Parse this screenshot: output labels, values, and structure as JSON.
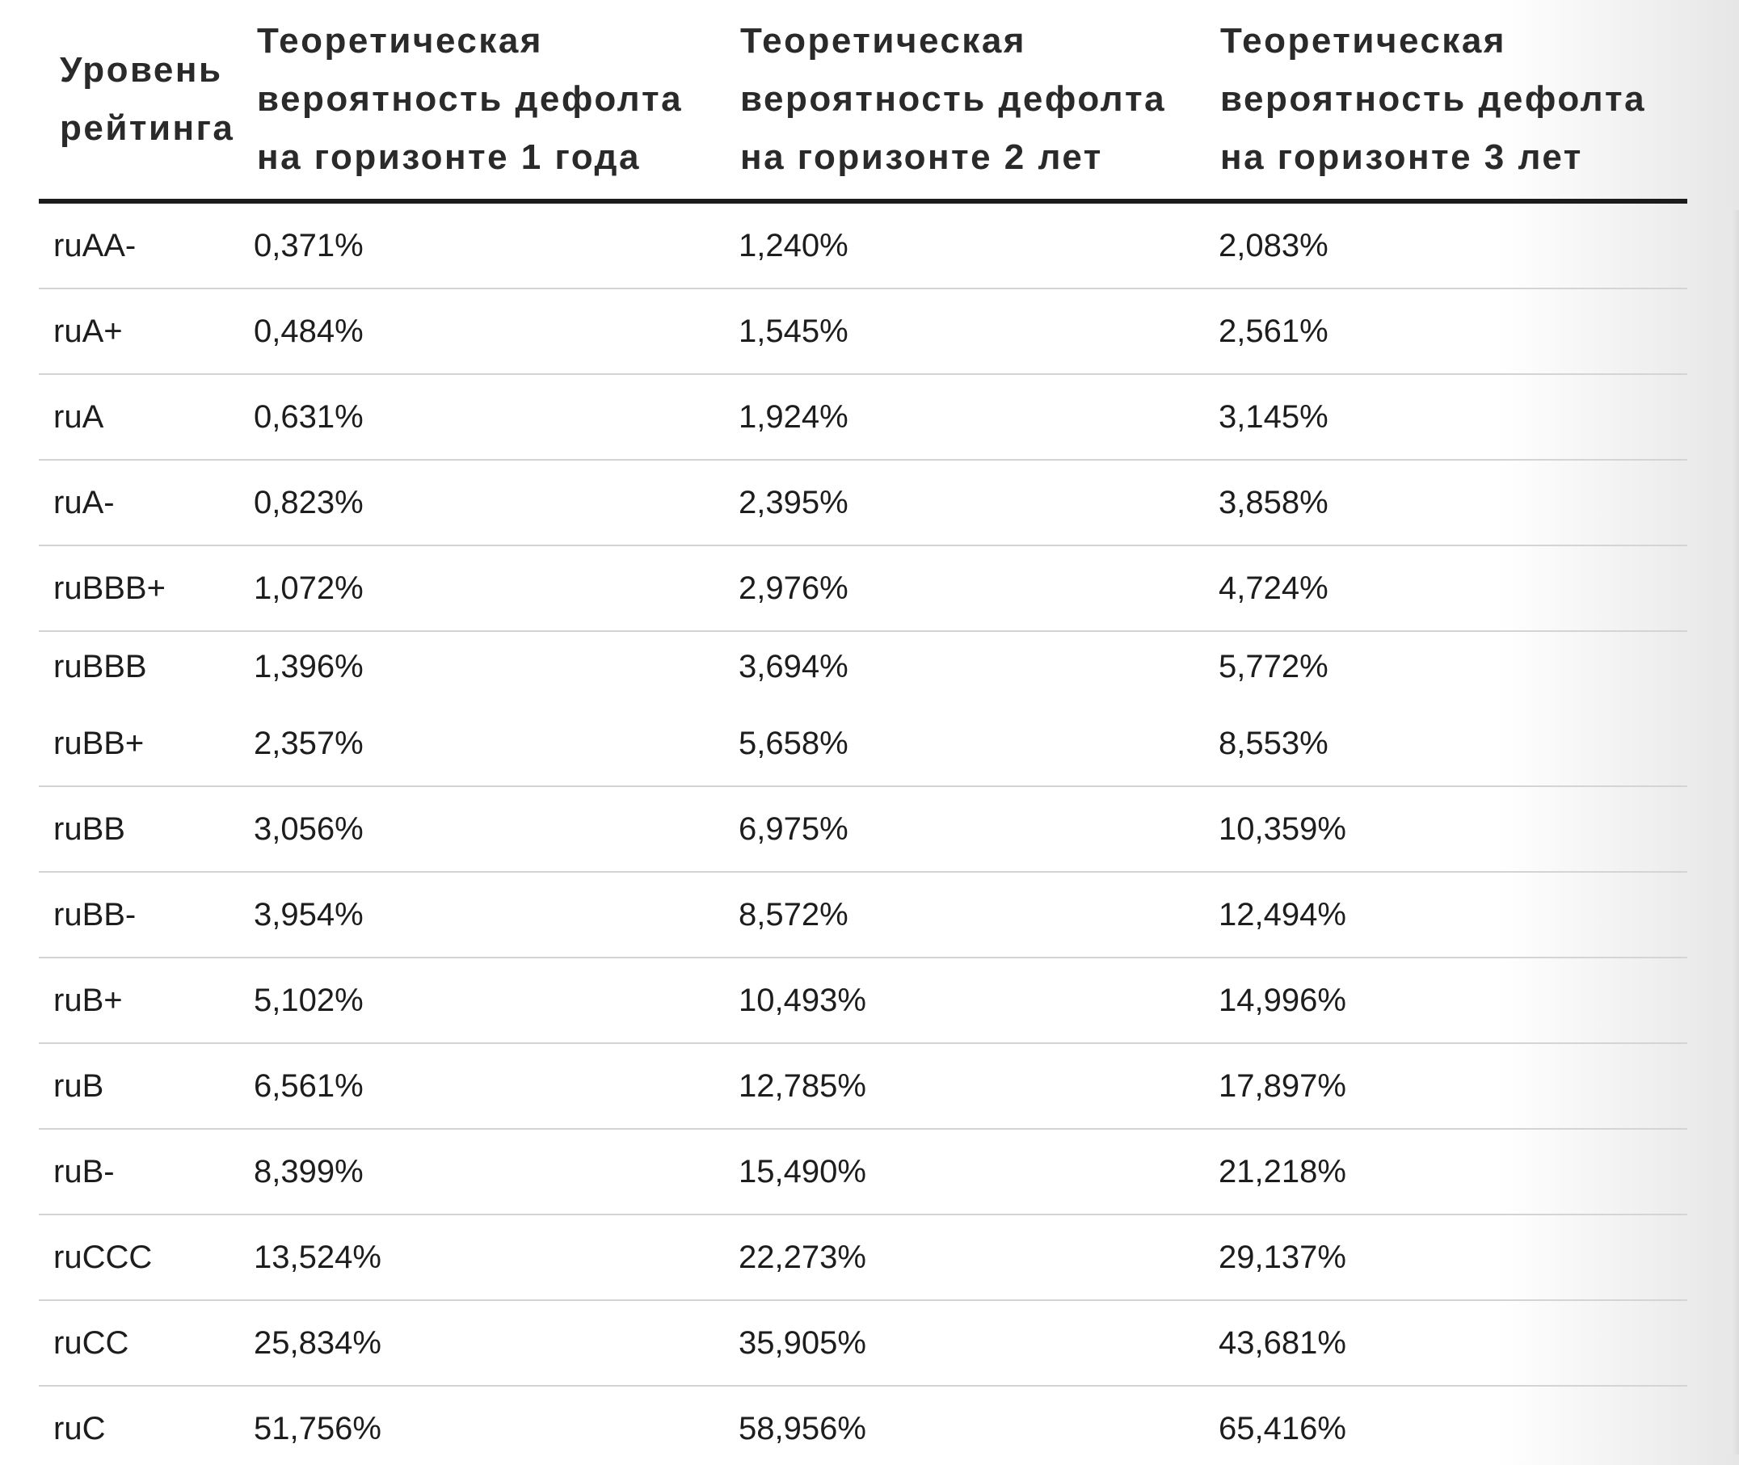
{
  "table": {
    "headers": [
      "Уровень рейтинга",
      "Теоретическая вероятность дефолта на горизонте 1 года",
      "Теоретическая вероятность дефолта на горизонте 2 лет",
      "Теоретическая вероятность дефолта на горизонте 3 лет"
    ],
    "rows": [
      [
        "ruAA-",
        "0,371%",
        "1,240%",
        "2,083%"
      ],
      [
        "ruA+",
        "0,484%",
        "1,545%",
        "2,561%"
      ],
      [
        "ruA",
        "0,631%",
        "1,924%",
        "3,145%"
      ],
      [
        "ruA-",
        "0,823%",
        "2,395%",
        "3,858%"
      ],
      [
        "ruBBB+",
        "1,072%",
        "2,976%",
        "4,724%"
      ],
      [
        "ruBBB",
        "1,396%",
        "3,694%",
        "5,772%"
      ],
      [
        "ruBB+",
        "2,357%",
        "5,658%",
        "8,553%"
      ],
      [
        "ruBB",
        "3,056%",
        "6,975%",
        "10,359%"
      ],
      [
        "ruBB-",
        "3,954%",
        "8,572%",
        "12,494%"
      ],
      [
        "ruB+",
        "5,102%",
        "10,493%",
        "14,996%"
      ],
      [
        "ruB",
        "6,561%",
        "12,785%",
        "17,897%"
      ],
      [
        "ruB-",
        "8,399%",
        "15,490%",
        "21,218%"
      ],
      [
        "ruCCC",
        "13,524%",
        "22,273%",
        "29,137%"
      ],
      [
        "ruCC",
        "25,834%",
        "35,905%",
        "43,681%"
      ],
      [
        "ruC",
        "51,756%",
        "58,956%",
        "65,416%"
      ]
    ]
  }
}
